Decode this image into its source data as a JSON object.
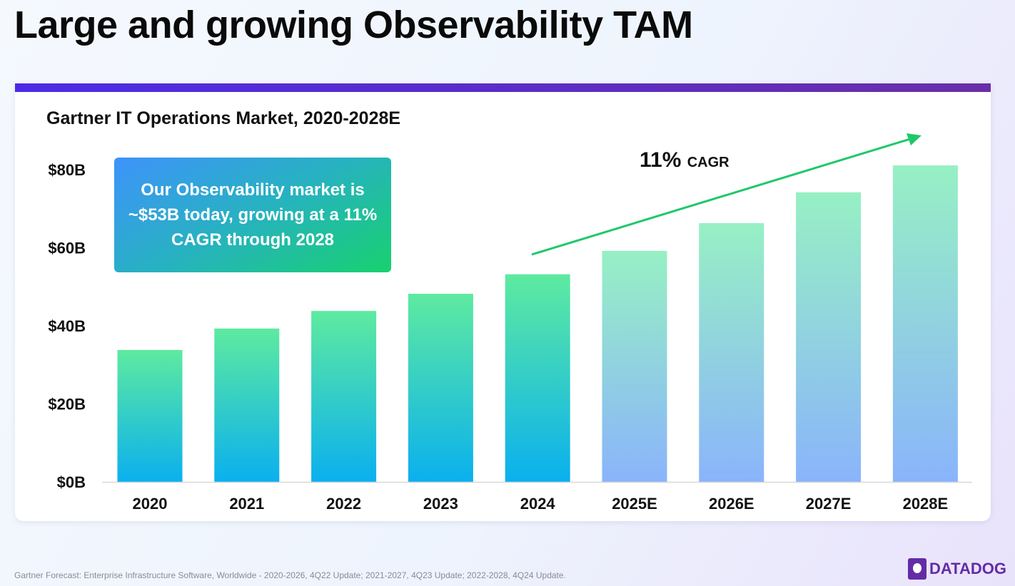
{
  "page_title": "Large and growing Observability TAM",
  "callout": "Our Observability market is ~$53B today, growing at a 11% CAGR through 2028",
  "cagr": {
    "value": "11%",
    "label": "CAGR"
  },
  "footnote": "Gartner Forecast: Enterprise Infrastructure Software, Worldwide - 2020-2026, 4Q22 Update; 2021-2027, 4Q23 Update; 2022-2028, 4Q24 Update.",
  "logo": "DATADOG",
  "colors": {
    "actual_top": "#5eeaa0",
    "actual_bottom": "#0ab0ee",
    "estimate_top": "#97f0c4",
    "estimate_bottom": "#8ab4fb",
    "arrow": "#1ec86a"
  },
  "chart_data": {
    "type": "bar",
    "title": "Gartner IT Operations Market, 2020-2028E",
    "categories": [
      "2020",
      "2021",
      "2022",
      "2023",
      "2024",
      "2025E",
      "2026E",
      "2027E",
      "2028E"
    ],
    "values": [
      33.8,
      39.3,
      43.8,
      48.2,
      53.2,
      59.2,
      66.3,
      74.2,
      81.1
    ],
    "estimate": [
      false,
      false,
      false,
      false,
      false,
      true,
      true,
      true,
      true
    ],
    "ylim": [
      0,
      80
    ],
    "yticks": [
      0,
      20,
      40,
      60,
      80
    ],
    "ytick_labels": [
      "$0B",
      "$20B",
      "$40B",
      "$60B",
      "$80B"
    ],
    "xlabel": "",
    "ylabel": "",
    "grid": false
  }
}
